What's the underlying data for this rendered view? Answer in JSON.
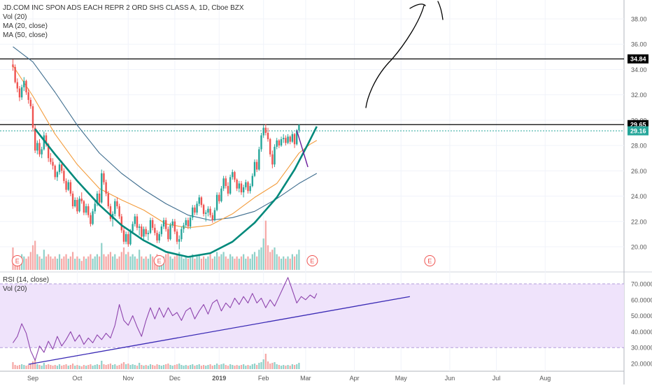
{
  "chart_data": {
    "type": "candlestick",
    "symbol_line": "JD.COM INC SPON ADS EACH REPR 2 ORD SHS CLASS A, 1D, Cboe BZX",
    "legends_main": [
      "Vol (20)",
      "MA (20, close)",
      "MA (50, close)"
    ],
    "legends_rsi": [
      "RSI (14, close)",
      "Vol (20)"
    ],
    "price_axis": {
      "range": [
        18.5,
        39.5
      ],
      "ticks": [
        "38.00",
        "36.00",
        "34.00",
        "32.00",
        "30.00",
        "28.00",
        "26.00",
        "24.00",
        "22.00",
        "20.00"
      ],
      "tick_values": [
        38,
        36,
        34,
        32,
        30,
        28,
        26,
        24,
        22,
        20
      ],
      "badges": [
        {
          "value": 34.84,
          "label": "34.84",
          "color": "#000000"
        },
        {
          "value": 29.65,
          "label": "29.65",
          "color": "#000000"
        },
        {
          "value": 29.16,
          "label": "29.16",
          "color": "#26a69a"
        }
      ]
    },
    "rsi_axis": {
      "range": [
        17,
        76
      ],
      "ticks": [
        "70.0000",
        "60.0000",
        "50.0000",
        "40.0000",
        "30.0000",
        "20.0000"
      ],
      "tick_values": [
        70,
        60,
        50,
        40,
        30,
        20
      ],
      "overbought": 70,
      "oversold": 30
    },
    "time_axis": {
      "labels": [
        "Sep",
        "Oct",
        "Nov",
        "Dec",
        "2019",
        "Feb",
        "Mar",
        "Apr",
        "May",
        "Jun",
        "Jul",
        "Aug"
      ],
      "bar_index": [
        0,
        20,
        43,
        64,
        84,
        104,
        123,
        145,
        166,
        188,
        209,
        231
      ]
    },
    "earnings_labels": [
      {
        "bar_index": -7,
        "label": "E"
      },
      {
        "bar_index": 57,
        "label": "E"
      },
      {
        "bar_index": 126,
        "label": "E"
      },
      {
        "bar_index": 179,
        "label": "E"
      }
    ],
    "horizontal_levels": [
      34.84,
      29.65
    ],
    "last_price_level": 29.16,
    "colors": {
      "up": "#26a69a",
      "down": "#ef5350",
      "ma20": "#f39c3c",
      "ma50": "#3e6d8e",
      "rsi": "#8e44ad",
      "rsi_band": "#efe3fb",
      "trend": "#00897b",
      "rsi_trend": "#3b2bb5",
      "annotation": "#000000"
    },
    "ohlc_start_bar": -9,
    "ohlc": [
      [
        34.4,
        34.8,
        33.9,
        34.2
      ],
      [
        34.2,
        34.4,
        32.9,
        33.0
      ],
      [
        33.0,
        33.3,
        32.2,
        32.5
      ],
      [
        32.5,
        32.7,
        31.5,
        31.8
      ],
      [
        31.8,
        32.8,
        31.6,
        32.6
      ],
      [
        32.6,
        33.4,
        32.3,
        33.1
      ],
      [
        33.1,
        33.2,
        32.0,
        32.2
      ],
      [
        32.2,
        32.5,
        31.3,
        31.6
      ],
      [
        31.6,
        31.8,
        30.9,
        31.1
      ],
      [
        31.1,
        31.3,
        29.1,
        29.4
      ],
      [
        29.4,
        29.6,
        27.4,
        27.6
      ],
      [
        27.6,
        28.4,
        27.3,
        28.2
      ],
      [
        28.2,
        28.5,
        27.1,
        27.3
      ],
      [
        27.3,
        27.9,
        27.0,
        27.7
      ],
      [
        27.7,
        29.1,
        27.6,
        28.8
      ],
      [
        28.8,
        29.0,
        27.9,
        28.1
      ],
      [
        28.1,
        28.2,
        26.7,
        27.0
      ],
      [
        27.0,
        27.4,
        26.5,
        26.7
      ],
      [
        26.7,
        27.0,
        26.1,
        26.4
      ],
      [
        26.4,
        26.5,
        25.3,
        25.5
      ],
      [
        25.5,
        26.0,
        25.2,
        25.9
      ],
      [
        25.9,
        26.7,
        25.7,
        26.5
      ],
      [
        26.5,
        26.8,
        25.8,
        26.0
      ],
      [
        26.0,
        26.2,
        25.0,
        25.2
      ],
      [
        25.2,
        25.4,
        24.3,
        24.5
      ],
      [
        24.5,
        25.3,
        24.4,
        25.1
      ],
      [
        25.1,
        25.3,
        24.0,
        24.2
      ],
      [
        24.2,
        24.4,
        23.0,
        23.2
      ],
      [
        23.2,
        23.9,
        23.1,
        23.7
      ],
      [
        23.7,
        23.9,
        22.6,
        22.8
      ],
      [
        22.8,
        24.0,
        22.7,
        23.8
      ],
      [
        23.8,
        24.3,
        23.4,
        23.6
      ],
      [
        23.6,
        23.7,
        22.5,
        22.7
      ],
      [
        22.7,
        23.4,
        22.5,
        23.2
      ],
      [
        23.2,
        23.4,
        22.3,
        22.5
      ],
      [
        22.5,
        22.7,
        21.6,
        21.8
      ],
      [
        21.8,
        23.0,
        21.7,
        22.8
      ],
      [
        22.8,
        23.6,
        22.6,
        23.4
      ],
      [
        23.4,
        24.4,
        23.2,
        24.2
      ],
      [
        24.2,
        24.5,
        23.3,
        23.5
      ],
      [
        23.5,
        26.1,
        23.4,
        25.8
      ],
      [
        25.8,
        26.0,
        24.9,
        25.1
      ],
      [
        25.1,
        25.3,
        24.0,
        24.2
      ],
      [
        24.2,
        24.4,
        23.0,
        23.2
      ],
      [
        23.2,
        23.4,
        22.0,
        22.2
      ],
      [
        22.2,
        22.8,
        21.6,
        22.6
      ],
      [
        22.6,
        23.8,
        22.4,
        23.6
      ],
      [
        23.6,
        23.9,
        23.0,
        23.2
      ],
      [
        23.2,
        23.4,
        22.2,
        22.4
      ],
      [
        22.4,
        22.6,
        21.1,
        21.3
      ],
      [
        21.3,
        21.5,
        20.2,
        20.4
      ],
      [
        20.4,
        21.2,
        20.2,
        21.0
      ],
      [
        21.0,
        21.2,
        20.0,
        20.2
      ],
      [
        20.2,
        21.4,
        20.1,
        21.2
      ],
      [
        21.2,
        22.0,
        21.0,
        21.8
      ],
      [
        21.8,
        22.6,
        21.6,
        22.4
      ],
      [
        22.4,
        22.6,
        21.3,
        21.5
      ],
      [
        21.5,
        21.8,
        20.9,
        21.6
      ],
      [
        21.6,
        21.8,
        20.6,
        20.8
      ],
      [
        20.8,
        21.6,
        20.6,
        21.4
      ],
      [
        21.4,
        21.6,
        20.8,
        21.0
      ],
      [
        21.0,
        21.3,
        20.5,
        21.1
      ],
      [
        21.1,
        22.3,
        21.0,
        22.1
      ],
      [
        22.1,
        22.3,
        21.3,
        21.5
      ],
      [
        21.5,
        21.8,
        20.9,
        21.1
      ],
      [
        21.1,
        21.3,
        20.3,
        20.5
      ],
      [
        20.5,
        21.2,
        20.3,
        21.0
      ],
      [
        21.0,
        21.8,
        20.8,
        21.6
      ],
      [
        21.6,
        22.3,
        21.4,
        22.1
      ],
      [
        22.1,
        22.3,
        21.2,
        21.4
      ],
      [
        21.4,
        21.6,
        20.4,
        20.6
      ],
      [
        20.6,
        21.9,
        20.5,
        21.7
      ],
      [
        21.7,
        22.2,
        21.5,
        22.0
      ],
      [
        22.0,
        22.2,
        21.0,
        21.2
      ],
      [
        21.2,
        21.4,
        20.2,
        20.4
      ],
      [
        20.4,
        20.9,
        19.8,
        20.6
      ],
      [
        20.6,
        21.6,
        20.4,
        21.4
      ],
      [
        21.4,
        21.9,
        21.1,
        21.7
      ],
      [
        21.7,
        22.3,
        21.5,
        22.1
      ],
      [
        22.1,
        22.3,
        21.4,
        21.6
      ],
      [
        21.6,
        22.5,
        21.4,
        22.3
      ],
      [
        22.3,
        23.3,
        22.1,
        23.1
      ],
      [
        23.1,
        23.3,
        22.5,
        22.7
      ],
      [
        22.7,
        23.6,
        22.5,
        23.4
      ],
      [
        23.4,
        24.1,
        23.2,
        23.9
      ],
      [
        23.9,
        24.0,
        23.1,
        23.3
      ],
      [
        23.3,
        23.4,
        22.4,
        22.6
      ],
      [
        22.6,
        22.9,
        22.0,
        22.7
      ],
      [
        22.7,
        23.2,
        22.4,
        23.0
      ],
      [
        23.0,
        23.2,
        22.3,
        22.5
      ],
      [
        22.5,
        22.7,
        21.9,
        22.1
      ],
      [
        22.1,
        23.1,
        22.0,
        22.9
      ],
      [
        22.9,
        24.3,
        22.8,
        24.1
      ],
      [
        24.1,
        24.3,
        23.4,
        23.6
      ],
      [
        23.6,
        24.8,
        23.5,
        24.6
      ],
      [
        24.6,
        25.6,
        24.4,
        25.4
      ],
      [
        25.4,
        25.6,
        24.6,
        24.8
      ],
      [
        24.8,
        25.1,
        24.0,
        24.2
      ],
      [
        24.2,
        25.7,
        24.1,
        25.5
      ],
      [
        25.5,
        26.1,
        25.3,
        25.9
      ],
      [
        25.9,
        26.0,
        25.1,
        25.3
      ],
      [
        25.3,
        25.4,
        24.4,
        24.6
      ],
      [
        24.6,
        25.2,
        24.3,
        25.0
      ],
      [
        25.0,
        25.2,
        24.1,
        24.3
      ],
      [
        24.3,
        24.9,
        23.9,
        24.7
      ],
      [
        24.7,
        25.3,
        24.5,
        25.1
      ],
      [
        25.1,
        25.2,
        24.2,
        24.4
      ],
      [
        24.4,
        25.0,
        24.2,
        24.8
      ],
      [
        24.8,
        25.8,
        24.7,
        25.6
      ],
      [
        25.6,
        26.9,
        25.5,
        26.7
      ],
      [
        26.7,
        26.9,
        25.9,
        26.1
      ],
      [
        26.1,
        27.9,
        26.0,
        27.7
      ],
      [
        27.7,
        29.0,
        27.5,
        28.8
      ],
      [
        28.8,
        29.6,
        28.6,
        29.4
      ],
      [
        29.4,
        29.7,
        28.8,
        29.0
      ],
      [
        29.0,
        29.4,
        28.3,
        28.5
      ],
      [
        28.5,
        28.6,
        27.1,
        27.3
      ],
      [
        27.3,
        27.6,
        26.2,
        26.5
      ],
      [
        26.5,
        28.1,
        26.3,
        27.9
      ],
      [
        27.9,
        28.6,
        27.7,
        28.4
      ],
      [
        28.4,
        28.5,
        27.8,
        28.0
      ],
      [
        28.0,
        28.7,
        27.9,
        28.5
      ],
      [
        28.5,
        28.9,
        28.2,
        28.6
      ],
      [
        28.6,
        28.8,
        28.0,
        28.2
      ],
      [
        28.2,
        28.9,
        28.1,
        28.7
      ],
      [
        28.7,
        28.8,
        28.1,
        28.3
      ],
      [
        28.3,
        29.1,
        28.2,
        28.9
      ],
      [
        28.9,
        29.0,
        27.8,
        28.1
      ],
      [
        28.1,
        29.3,
        28.0,
        29.2
      ],
      [
        29.2,
        29.7,
        29.0,
        29.6
      ]
    ],
    "ma20": [
      [
        -9,
        34.3
      ],
      [
        0,
        31.9
      ],
      [
        10,
        28.9
      ],
      [
        20,
        26.5
      ],
      [
        30,
        24.6
      ],
      [
        40,
        23.7
      ],
      [
        50,
        22.9
      ],
      [
        60,
        21.8
      ],
      [
        70,
        21.5
      ],
      [
        80,
        21.7
      ],
      [
        90,
        22.6
      ],
      [
        100,
        23.9
      ],
      [
        110,
        25.0
      ],
      [
        115,
        26.2
      ],
      [
        120,
        27.4
      ],
      [
        125,
        28.1
      ],
      [
        128,
        28.4
      ]
    ],
    "ma50": [
      [
        -9,
        35.8
      ],
      [
        0,
        34.6
      ],
      [
        10,
        32.2
      ],
      [
        20,
        29.6
      ],
      [
        30,
        27.4
      ],
      [
        40,
        25.8
      ],
      [
        50,
        24.5
      ],
      [
        60,
        23.4
      ],
      [
        70,
        22.5
      ],
      [
        80,
        22.1
      ],
      [
        90,
        22.3
      ],
      [
        100,
        22.8
      ],
      [
        110,
        23.8
      ],
      [
        120,
        25.0
      ],
      [
        128,
        25.8
      ]
    ],
    "rsi": [
      [
        -9,
        33
      ],
      [
        -7,
        37
      ],
      [
        -5,
        45
      ],
      [
        -3,
        39
      ],
      [
        -1,
        28
      ],
      [
        1,
        22
      ],
      [
        3,
        31
      ],
      [
        5,
        27
      ],
      [
        7,
        34
      ],
      [
        9,
        29
      ],
      [
        11,
        37
      ],
      [
        13,
        31
      ],
      [
        15,
        35
      ],
      [
        17,
        40
      ],
      [
        19,
        34
      ],
      [
        21,
        38
      ],
      [
        23,
        32
      ],
      [
        25,
        36
      ],
      [
        27,
        33
      ],
      [
        29,
        38
      ],
      [
        31,
        35
      ],
      [
        33,
        39
      ],
      [
        35,
        36
      ],
      [
        37,
        44
      ],
      [
        39,
        57
      ],
      [
        41,
        47
      ],
      [
        43,
        44
      ],
      [
        45,
        50
      ],
      [
        47,
        43
      ],
      [
        49,
        37
      ],
      [
        51,
        47
      ],
      [
        53,
        55
      ],
      [
        55,
        48
      ],
      [
        57,
        55
      ],
      [
        59,
        49
      ],
      [
        61,
        55
      ],
      [
        63,
        50
      ],
      [
        65,
        52
      ],
      [
        67,
        47
      ],
      [
        69,
        53
      ],
      [
        71,
        55
      ],
      [
        73,
        48
      ],
      [
        75,
        53
      ],
      [
        77,
        57
      ],
      [
        79,
        51
      ],
      [
        81,
        58
      ],
      [
        83,
        60
      ],
      [
        85,
        53
      ],
      [
        87,
        58
      ],
      [
        89,
        55
      ],
      [
        91,
        61
      ],
      [
        93,
        57
      ],
      [
        95,
        62
      ],
      [
        97,
        58
      ],
      [
        99,
        64
      ],
      [
        101,
        58
      ],
      [
        103,
        61
      ],
      [
        105,
        55
      ],
      [
        107,
        60
      ],
      [
        109,
        56
      ],
      [
        111,
        62
      ],
      [
        113,
        68
      ],
      [
        115,
        74
      ],
      [
        117,
        66
      ],
      [
        119,
        58
      ],
      [
        121,
        62
      ],
      [
        123,
        60
      ],
      [
        125,
        63
      ],
      [
        127,
        61
      ],
      [
        128,
        64
      ]
    ],
    "volume": [
      1.0,
      0.6,
      0.5,
      0.6,
      0.7,
      0.6,
      0.5,
      0.6,
      0.8,
      1.1,
      1.3,
      0.7,
      0.6,
      0.5,
      0.9,
      0.6,
      0.7,
      0.6,
      0.5,
      0.6,
      0.5,
      0.7,
      0.5,
      0.6,
      0.7,
      0.5,
      0.6,
      0.8,
      0.5,
      0.6,
      0.5,
      0.4,
      0.6,
      0.5,
      0.6,
      0.7,
      0.5,
      0.6,
      0.7,
      0.6,
      1.2,
      0.7,
      0.6,
      0.7,
      0.8,
      0.6,
      0.7,
      0.5,
      0.6,
      0.8,
      1.0,
      0.7,
      0.8,
      0.6,
      0.7,
      0.6,
      0.5,
      0.9,
      0.6,
      0.5,
      0.6,
      0.5,
      0.7,
      0.6,
      0.5,
      0.7,
      0.6,
      0.5,
      0.6,
      0.7,
      0.8,
      0.6,
      0.5,
      0.6,
      0.7,
      0.8,
      0.6,
      0.5,
      0.6,
      0.5,
      0.6,
      0.7,
      0.5,
      0.6,
      0.7,
      0.5,
      0.6,
      0.5,
      0.6,
      0.7,
      0.5,
      0.6,
      0.8,
      0.6,
      0.7,
      0.8,
      0.6,
      0.5,
      0.7,
      0.6,
      0.5,
      0.6,
      0.5,
      0.6,
      0.7,
      0.5,
      0.6,
      0.5,
      0.7,
      0.8,
      0.6,
      0.9,
      1.0,
      1.4,
      2.2,
      1.1,
      0.8,
      0.9,
      1.0,
      0.7,
      0.6,
      0.5,
      0.6,
      0.5,
      0.6,
      0.5,
      0.7,
      0.6,
      0.7,
      0.9
    ]
  }
}
